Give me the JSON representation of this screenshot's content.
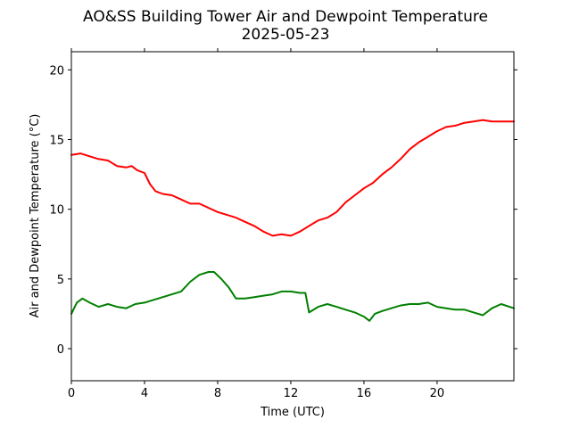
{
  "chart_data": {
    "type": "line",
    "title": "AO&SS Building Tower Air and Dewpoint Temperature",
    "subtitle": "2025-05-23",
    "xlabel": "Time (UTC)",
    "ylabel": "Air and Dewpoint Temperature (°C)",
    "xlim": [
      0,
      24.2
    ],
    "ylim": [
      -2.3,
      21.3
    ],
    "xticks": [
      0,
      4,
      8,
      12,
      16,
      20
    ],
    "yticks": [
      0,
      5,
      10,
      15,
      20
    ],
    "grid": false,
    "series": [
      {
        "color": "#ff0000",
        "x": [
          0,
          0.5,
          1.0,
          1.5,
          2.0,
          2.5,
          3.0,
          3.3,
          3.6,
          4.0,
          4.3,
          4.6,
          5.0,
          5.5,
          6.0,
          6.5,
          7.0,
          7.5,
          8.0,
          8.5,
          9.0,
          9.5,
          10.0,
          10.5,
          11.0,
          11.5,
          12.0,
          12.5,
          13.0,
          13.5,
          14.0,
          14.5,
          15.0,
          15.5,
          16.0,
          16.5,
          17.0,
          17.5,
          18.0,
          18.5,
          19.0,
          19.5,
          20.0,
          20.5,
          21.0,
          21.5,
          22.0,
          22.5,
          23.0,
          23.5,
          24.2
        ],
        "y": [
          13.9,
          14.0,
          13.8,
          13.6,
          13.5,
          13.1,
          13.0,
          13.1,
          12.8,
          12.6,
          11.8,
          11.3,
          11.1,
          11.0,
          10.7,
          10.4,
          10.4,
          10.1,
          9.8,
          9.6,
          9.4,
          9.1,
          8.8,
          8.4,
          8.1,
          8.2,
          8.1,
          8.4,
          8.8,
          9.2,
          9.4,
          9.8,
          10.5,
          11.0,
          11.5,
          11.9,
          12.5,
          13.0,
          13.6,
          14.3,
          14.8,
          15.2,
          15.6,
          15.9,
          16.0,
          16.2,
          16.3,
          16.4,
          16.3,
          16.3,
          16.3
        ]
      },
      {
        "color": "#008000",
        "x": [
          0,
          0.3,
          0.6,
          1.0,
          1.5,
          2.0,
          2.5,
          3.0,
          3.5,
          4.0,
          4.5,
          5.0,
          5.5,
          6.0,
          6.5,
          7.0,
          7.5,
          7.8,
          8.2,
          8.6,
          9.0,
          9.5,
          10.0,
          10.5,
          11.0,
          11.5,
          12.0,
          12.5,
          12.8,
          13.0,
          13.5,
          14.0,
          14.5,
          15.0,
          15.5,
          16.0,
          16.3,
          16.6,
          17.0,
          17.5,
          18.0,
          18.5,
          19.0,
          19.5,
          20.0,
          20.5,
          21.0,
          21.5,
          22.0,
          22.5,
          23.0,
          23.5,
          24.2
        ],
        "y": [
          2.5,
          3.3,
          3.6,
          3.3,
          3.0,
          3.2,
          3.0,
          2.9,
          3.2,
          3.3,
          3.5,
          3.7,
          3.9,
          4.1,
          4.8,
          5.3,
          5.5,
          5.5,
          5.0,
          4.4,
          3.6,
          3.6,
          3.7,
          3.8,
          3.9,
          4.1,
          4.1,
          4.0,
          4.0,
          2.6,
          3.0,
          3.2,
          3.0,
          2.8,
          2.6,
          2.3,
          2.0,
          2.5,
          2.7,
          2.9,
          3.1,
          3.2,
          3.2,
          3.3,
          3.0,
          2.9,
          2.8,
          2.8,
          2.6,
          2.4,
          2.9,
          3.2,
          2.9
        ]
      }
    ]
  }
}
